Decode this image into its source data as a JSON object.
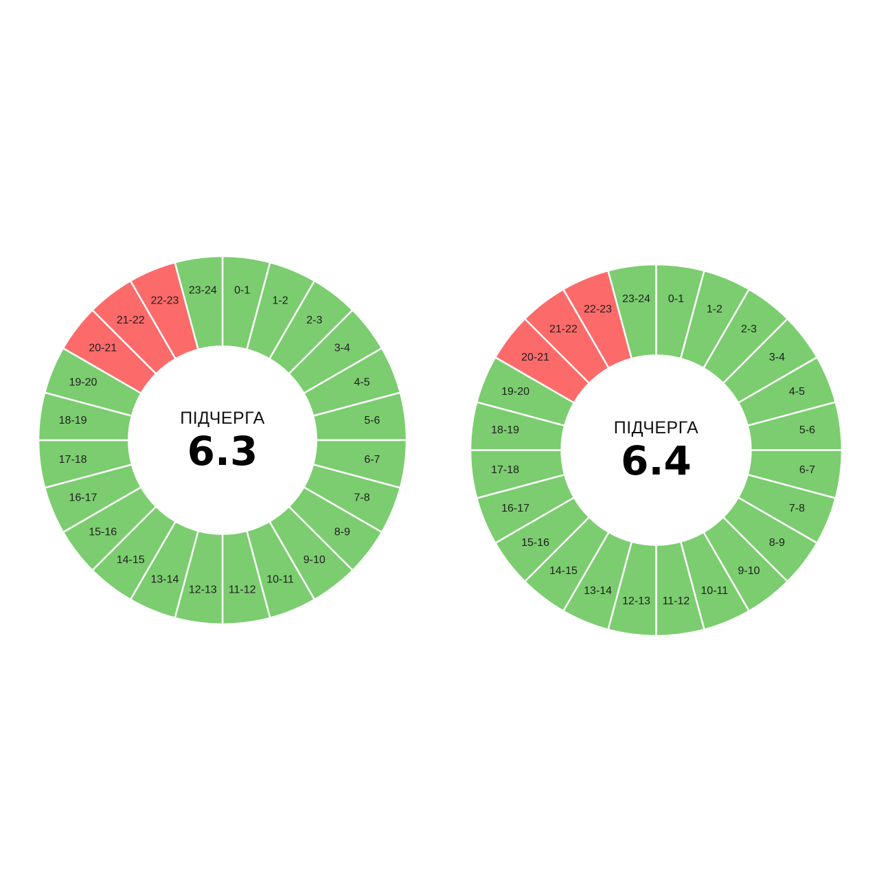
{
  "colors": {
    "on": "#7bcd6f",
    "off": "#fd6a6a"
  },
  "chart_data": [
    {
      "type": "pie",
      "title": "ПІДЧЕРГА",
      "value": "6.3",
      "categories": [
        "0-1",
        "1-2",
        "2-3",
        "3-4",
        "4-5",
        "5-6",
        "6-7",
        "7-8",
        "8-9",
        "9-10",
        "10-11",
        "11-12",
        "12-13",
        "13-14",
        "14-15",
        "15-16",
        "16-17",
        "17-18",
        "18-19",
        "19-20",
        "20-21",
        "21-22",
        "22-23",
        "23-24"
      ],
      "status": [
        "on",
        "on",
        "on",
        "on",
        "on",
        "on",
        "on",
        "on",
        "on",
        "on",
        "on",
        "on",
        "on",
        "on",
        "on",
        "on",
        "on",
        "on",
        "on",
        "on",
        "off",
        "off",
        "off",
        "on"
      ]
    },
    {
      "type": "pie",
      "title": "ПІДЧЕРГА",
      "value": "6.4",
      "categories": [
        "0-1",
        "1-2",
        "2-3",
        "3-4",
        "4-5",
        "5-6",
        "6-7",
        "7-8",
        "8-9",
        "9-10",
        "10-11",
        "11-12",
        "12-13",
        "13-14",
        "14-15",
        "15-16",
        "16-17",
        "17-18",
        "18-19",
        "19-20",
        "20-21",
        "21-22",
        "22-23",
        "23-24"
      ],
      "status": [
        "on",
        "on",
        "on",
        "on",
        "on",
        "on",
        "on",
        "on",
        "on",
        "on",
        "on",
        "on",
        "on",
        "on",
        "on",
        "on",
        "on",
        "on",
        "on",
        "on",
        "off",
        "off",
        "off",
        "on"
      ]
    }
  ]
}
